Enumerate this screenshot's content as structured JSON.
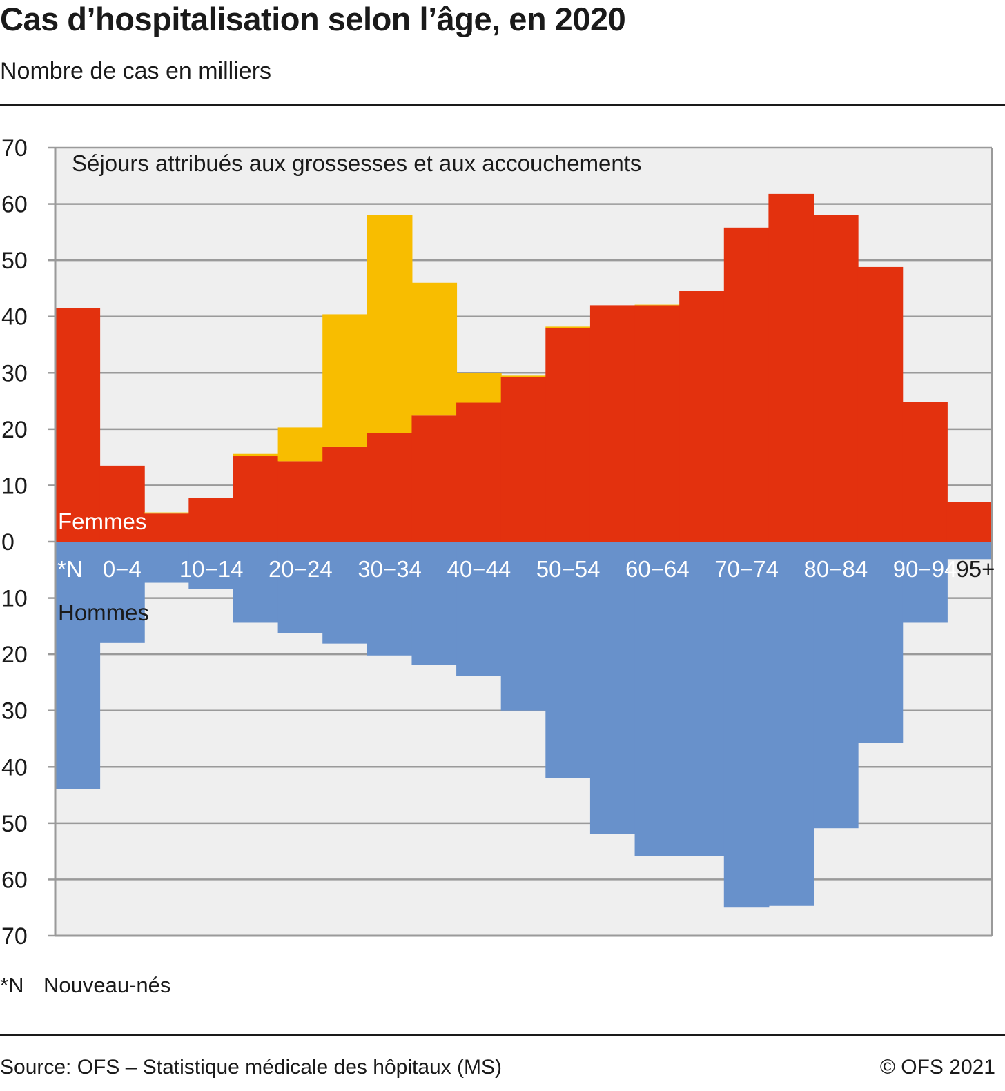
{
  "title": "Cas d’hospitalisation selon l’âge, en 2020",
  "subtitle": "Nombre de cas en milliers",
  "footnote": {
    "code": "*N",
    "text": "Nouveau-nés"
  },
  "source": "Source: OFS – Statistique médicale des hôpitaux (MS)",
  "copyright": "© OFS 2021",
  "chart_data": {
    "type": "bar",
    "stacked": true,
    "mirrored": true,
    "categories": [
      "*N",
      "0−4",
      "5−9",
      "10−14",
      "15−19",
      "20−24",
      "25−29",
      "30−34",
      "35−39",
      "40−44",
      "45−49",
      "50−54",
      "55−59",
      "60−64",
      "65−69",
      "70−74",
      "75−79",
      "80−84",
      "85−89",
      "90−94",
      "95+"
    ],
    "category_labels_shown": [
      "*N",
      "0−4",
      "",
      "10−14",
      "",
      "20−24",
      "",
      "30−34",
      "",
      "40−44",
      "",
      "50−54",
      "",
      "60−64",
      "",
      "70−74",
      "",
      "80−84",
      "",
      "90−94",
      "95+"
    ],
    "series": [
      {
        "name": "Femmes",
        "direction": "up",
        "color": "#e3310e",
        "values": [
          41.5,
          13.5,
          5,
          7.8,
          15.2,
          14.3,
          16.8,
          19.3,
          22.4,
          24.7,
          29.2,
          38,
          42,
          42,
          44.5,
          55.8,
          61.8,
          58.1,
          48.8,
          24.8,
          7
        ]
      },
      {
        "name": "Séjours attribués aux grossesses et aux accouchements",
        "direction": "up",
        "color": "#f8bd00",
        "values": [
          0,
          0,
          0.2,
          0,
          0.4,
          6,
          23.6,
          38.7,
          23.6,
          5.3,
          0.3,
          0.2,
          0,
          0.1,
          0,
          0,
          0,
          0,
          0,
          0,
          0
        ]
      },
      {
        "name": "Hommes",
        "direction": "down",
        "color": "#6891cb",
        "values": [
          44,
          18,
          7.3,
          8.4,
          14.4,
          16.3,
          18.1,
          20.2,
          21.9,
          23.9,
          30,
          42,
          51.9,
          55.9,
          55.8,
          65,
          64.7,
          50.9,
          35.7,
          14.4,
          3.1
        ]
      }
    ],
    "annotations": {
      "femmes": "Femmes",
      "hommes": "Hommes",
      "pregnancy": "Séjours attribués aux grossesses et aux accouchements"
    },
    "yticks": [
      "70",
      "60",
      "50",
      "40",
      "30",
      "20",
      "10",
      "0",
      "10",
      "20",
      "30",
      "40",
      "50",
      "60",
      "70"
    ],
    "ylim": [
      -70,
      70
    ],
    "grid": true,
    "colors": {
      "background": "#efefef",
      "grid": "#9a9a9a",
      "frame": "#9a9a9a"
    }
  }
}
